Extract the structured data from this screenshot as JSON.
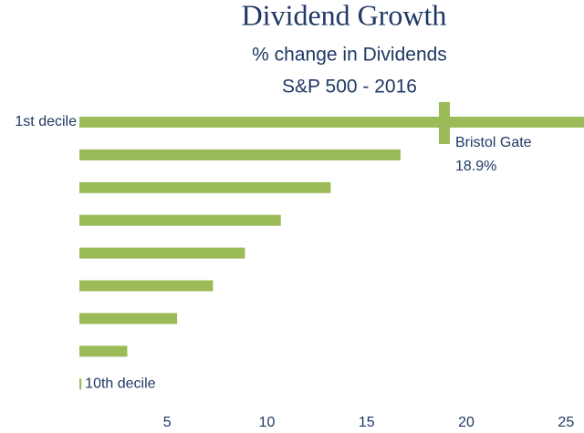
{
  "chart_data": {
    "type": "bar",
    "orientation": "horizontal",
    "title": "Dividend Growth",
    "subtitle": [
      "% change in Dividends",
      "S&P 500 - 2016"
    ],
    "categories": [
      "1st decile",
      null,
      null,
      null,
      null,
      null,
      null,
      null,
      "10th decile"
    ],
    "values": [
      25.9,
      16.7,
      13.2,
      10.7,
      8.9,
      7.3,
      5.5,
      3.0,
      0.7
    ],
    "color": "#9bbb59",
    "xlim": [
      0.6,
      25.9
    ],
    "xticks": [
      5,
      10,
      15,
      20,
      25
    ],
    "marker": {
      "name": "Bristol Gate",
      "value": 18.9,
      "value_label": "18.9%"
    }
  }
}
